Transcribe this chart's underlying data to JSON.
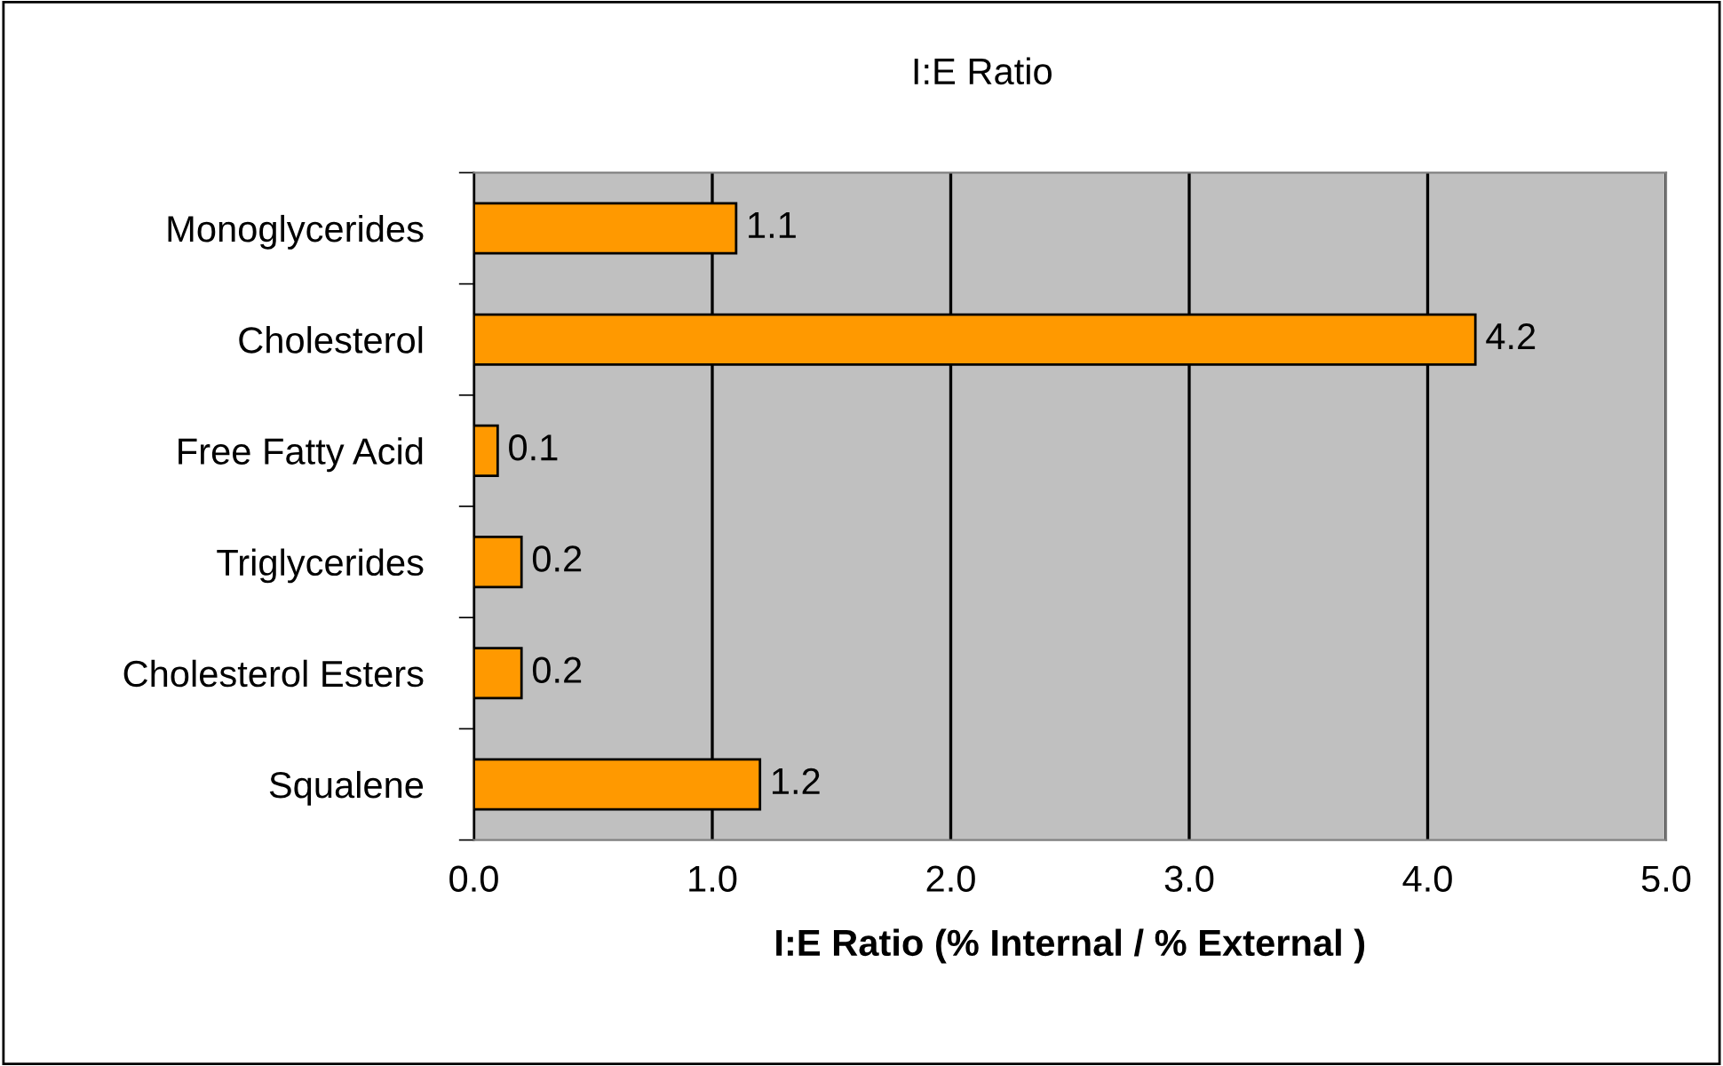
{
  "chart_data": {
    "type": "bar",
    "orientation": "horizontal",
    "title": "I:E Ratio",
    "xlabel": "I:E Ratio (% Internal / % External )",
    "categories": [
      "Monoglycerides",
      "Cholesterol",
      "Free Fatty Acid",
      "Triglycerides",
      "Cholesterol Esters",
      "Squalene"
    ],
    "values": [
      1.1,
      4.2,
      0.1,
      0.2,
      0.2,
      1.2
    ],
    "color": "#ff9900",
    "data_labels": true,
    "xlim": [
      0,
      5
    ],
    "xticks": [
      {
        "value": 0,
        "label": "0.0"
      },
      {
        "value": 1,
        "label": "1.0"
      },
      {
        "value": 2,
        "label": "2.0"
      },
      {
        "value": 3,
        "label": "3.0"
      },
      {
        "value": 4,
        "label": "4.0"
      },
      {
        "value": 5,
        "label": "5.0"
      }
    ],
    "grid": "x",
    "legend": false
  }
}
